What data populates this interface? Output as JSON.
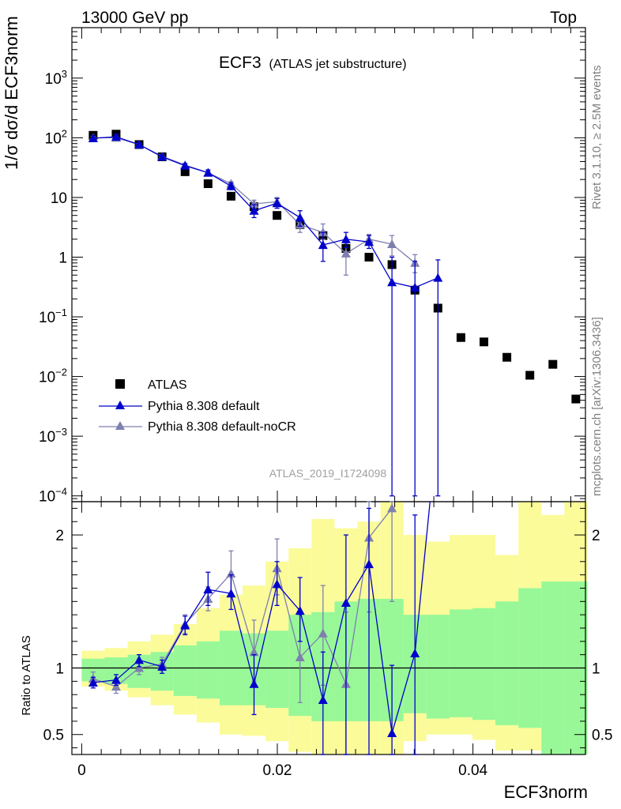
{
  "header": {
    "left": "13000 GeV pp",
    "right": "Top"
  },
  "title": {
    "main": "ECF3",
    "sub": "(ATLAS jet substructure)"
  },
  "side_labels": {
    "rivet": "Rivet 3.1.10, ≥ 2.5M events",
    "mcplots": "mcplots.cern.ch [arXiv:1306.3436]"
  },
  "analysis_id": "ATLAS_2019_I1724098",
  "ylabel_top": "1/σ dσ/d ECF3norm",
  "ylabel_bottom": "Ratio to ATLAS",
  "xlabel": "ECF3norm",
  "legend": [
    {
      "label": "ATLAS",
      "marker": "square",
      "color": "#000000"
    },
    {
      "label": "Pythia 8.308 default",
      "marker": "triangle",
      "color": "#0000cc"
    },
    {
      "label": "Pythia 8.308 default-noCR",
      "marker": "triangle",
      "color": "#7f7fb0"
    }
  ],
  "colors": {
    "atlas": "#000000",
    "default": "#0000cc",
    "nocr": "#7f7fb0",
    "band_inner": "#98f898",
    "band_outer": "#fbfb9a"
  },
  "chart_data": [
    {
      "type": "scatter",
      "panel": "main",
      "title": "ECF3 (ATLAS jet substructure)",
      "xlabel": "ECF3norm",
      "ylabel": "1/σ dσ/d ECF3norm",
      "xlim": [
        -0.001,
        0.0515
      ],
      "ylim": [
        8e-05,
        7000
      ],
      "yscale": "log",
      "ytick_labels": [
        "10^-4",
        "10^-3",
        "10^-2",
        "10^-1",
        "1",
        "10",
        "10^2",
        "10^3"
      ],
      "xtick_labels": [
        "0",
        "0.02",
        "0.04"
      ],
      "x": [
        0.00117,
        0.00352,
        0.00587,
        0.00822,
        0.01057,
        0.01292,
        0.01527,
        0.01762,
        0.01997,
        0.02232,
        0.02467,
        0.02702,
        0.02937,
        0.03172,
        0.03407,
        0.03642,
        0.03877,
        0.04112,
        0.04347,
        0.04582,
        0.04817,
        0.05052
      ],
      "series": [
        {
          "name": "ATLAS",
          "values": [
            110,
            115,
            77,
            48,
            27,
            17,
            10.5,
            7,
            5,
            3.5,
            2.3,
            1.4,
            1.0,
            0.75,
            0.28,
            0.14,
            0.045,
            0.038,
            0.021,
            0.0105,
            0.016,
            0.0042
          ]
        },
        {
          "name": "Pythia 8.308 default",
          "values": [
            98,
            104,
            77,
            48,
            34,
            26,
            15.5,
            6.0,
            8.0,
            4.6,
            1.6,
            2.0,
            1.8,
            0.38,
            0.31,
            0.45
          ],
          "err_lo": [
            88,
            95,
            71,
            44,
            31,
            23,
            13.5,
            4.6,
            6.6,
            3.3,
            0.85,
            1.45,
            1.4,
            0.0001,
            0.0001,
            0.0001
          ],
          "err_hi": [
            108,
            114,
            83,
            52,
            37,
            29,
            17.5,
            7.6,
            9.6,
            6.0,
            2.6,
            2.6,
            2.3,
            1.0,
            0.85,
            0.9
          ]
        },
        {
          "name": "Pythia 8.308 default-noCR",
          "values": [
            100,
            100,
            77,
            49,
            35,
            26,
            17,
            7.8,
            8.5,
            3.5,
            2.6,
            1.15,
            2.0,
            1.65,
            0.8
          ],
          "err_lo": [
            94,
            94,
            72,
            46,
            33,
            24,
            15.5,
            6.6,
            7.2,
            2.6,
            2.0,
            0.5,
            1.6,
            1.05,
            0.55
          ],
          "err_hi": [
            106,
            106,
            82,
            52,
            37,
            28,
            18.5,
            9.0,
            10.0,
            4.4,
            3.6,
            1.7,
            2.4,
            2.3,
            1.1
          ]
        }
      ]
    },
    {
      "type": "scatter",
      "panel": "ratio",
      "ylabel": "Ratio to ATLAS",
      "xlabel": "ECF3norm",
      "xlim": [
        -0.001,
        0.0515
      ],
      "ylim": [
        0.35,
        2.25
      ],
      "ytick_labels": [
        "0.5",
        "1",
        "2"
      ],
      "xtick_labels": [
        "0",
        "0.02",
        "0.04"
      ],
      "reference_line": 1.0,
      "bins": [
        0,
        0.00235,
        0.0047,
        0.00705,
        0.0094,
        0.01175,
        0.0141,
        0.01645,
        0.0188,
        0.02115,
        0.0235,
        0.02585,
        0.0282,
        0.03055,
        0.0329,
        0.03525,
        0.0376,
        0.03995,
        0.0423,
        0.04465,
        0.047,
        0.04935,
        0.0517
      ],
      "band_inner": {
        "lo": [
          0.9,
          0.88,
          0.85,
          0.83,
          0.79,
          0.77,
          0.72,
          0.72,
          0.7,
          0.64,
          0.6,
          0.6,
          0.6,
          0.6,
          0.66,
          0.62,
          0.63,
          0.61,
          0.57,
          0.55,
          0.35,
          0.35
        ],
        "hi": [
          1.07,
          1.08,
          1.1,
          1.12,
          1.17,
          1.2,
          1.28,
          1.26,
          1.28,
          1.4,
          1.42,
          1.5,
          1.52,
          1.52,
          1.4,
          1.4,
          1.44,
          1.45,
          1.5,
          1.6,
          1.65,
          1.65
        ]
      },
      "band_outer": {
        "lo": [
          0.86,
          0.83,
          0.78,
          0.72,
          0.65,
          0.59,
          0.5,
          0.49,
          0.45,
          0.37,
          0.35,
          0.35,
          0.35,
          0.35,
          0.45,
          0.5,
          0.5,
          0.46,
          0.38,
          0.38,
          0.38,
          0.38
        ],
        "hi": [
          1.13,
          1.15,
          1.2,
          1.25,
          1.33,
          1.45,
          1.55,
          1.62,
          1.8,
          1.9,
          2.12,
          2.05,
          2.1,
          2.25,
          2.0,
          1.95,
          2.0,
          2.0,
          1.85,
          2.25,
          2.15,
          2.25
        ]
      },
      "series": [
        {
          "name": "Pythia 8.308 default",
          "values": [
            0.89,
            0.91,
            1.06,
            1.01,
            1.32,
            1.59,
            1.56,
            0.88,
            1.63,
            1.43,
            0.76,
            1.49,
            1.78,
            0.51,
            1.11
          ],
          "err_lo": [
            0.85,
            0.87,
            1.01,
            0.96,
            1.25,
            1.47,
            1.44,
            0.65,
            1.47,
            1.2,
            0.3,
            0.3,
            0.3,
            0.3,
            0.3
          ],
          "err_hi": [
            0.93,
            0.95,
            1.1,
            1.06,
            1.39,
            1.72,
            1.7,
            1.1,
            1.8,
            1.68,
            1.12,
            2.0,
            2.2,
            1.02,
            2.15
          ]
        },
        {
          "name": "Pythia 8.308 default-noCR",
          "values": [
            0.92,
            0.86,
            1.0,
            1.03,
            1.33,
            1.52,
            1.71,
            1.12,
            1.75,
            1.08,
            1.26,
            0.88,
            1.98,
            2.2
          ],
          "err_lo": [
            0.87,
            0.81,
            0.95,
            0.98,
            1.26,
            1.43,
            1.55,
            0.9,
            1.55,
            0.74,
            0.87,
            0.3,
            1.42,
            1.5
          ],
          "err_hi": [
            0.97,
            0.91,
            1.06,
            1.08,
            1.4,
            1.61,
            1.88,
            1.36,
            1.97,
            1.4,
            1.62,
            1.42,
            2.4,
            2.4
          ]
        }
      ]
    }
  ]
}
